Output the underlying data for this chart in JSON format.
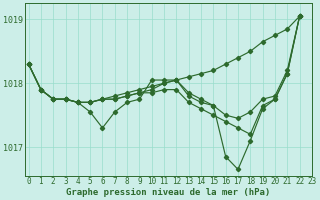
{
  "bg_color": "#cceee8",
  "grid_color": "#99ddcc",
  "line_color": "#2d6a2d",
  "series": {
    "line1": [
      1018.3,
      1017.9,
      1017.75,
      1017.75,
      1017.7,
      1017.7,
      1017.75,
      1017.75,
      1017.8,
      1017.85,
      1017.9,
      1018.0,
      1018.05,
      1017.85,
      1017.75,
      1017.65,
      1017.5,
      1017.45,
      1017.55,
      1017.75,
      1017.8,
      1018.2,
      1019.05
    ],
    "line2": [
      1018.3,
      1017.9,
      1017.75,
      1017.75,
      1017.7,
      1017.55,
      1017.3,
      1017.55,
      1017.7,
      1017.75,
      1018.05,
      1018.05,
      1018.05,
      1017.8,
      1017.7,
      1017.65,
      1016.85,
      1016.65,
      1017.1,
      1017.6,
      1017.75,
      1018.15,
      1019.05
    ],
    "line3": [
      1018.3,
      1017.9,
      1017.75,
      1017.75,
      1017.7,
      1017.7,
      1017.75,
      1017.75,
      1017.8,
      1017.85,
      1017.85,
      1017.9,
      1017.9,
      1017.7,
      1017.6,
      1017.5,
      1017.4,
      1017.3,
      1017.2,
      1017.65,
      1017.75,
      1018.15,
      1019.05
    ]
  },
  "upper_line": [
    1018.3,
    1017.9,
    1017.75,
    1017.75,
    1017.7,
    1017.7,
    1017.75,
    1017.8,
    1017.85,
    1017.9,
    1017.95,
    1018.0,
    1018.05,
    1018.1,
    1018.15,
    1018.2,
    1018.3,
    1018.4,
    1018.5,
    1018.65,
    1018.75,
    1018.85,
    1019.05
  ],
  "x_ticks": [
    0,
    1,
    2,
    3,
    4,
    5,
    6,
    7,
    8,
    9,
    10,
    11,
    12,
    13,
    14,
    15,
    16,
    17,
    18,
    19,
    20,
    21,
    22,
    23
  ],
  "ylim": [
    1016.55,
    1019.25
  ],
  "yticks": [
    1017.0,
    1018.0,
    1019.0
  ],
  "xlabel": "Graphe pression niveau de la mer (hPa)",
  "tick_fontsize": 6.0,
  "marker_size": 2.2,
  "lw": 0.85
}
